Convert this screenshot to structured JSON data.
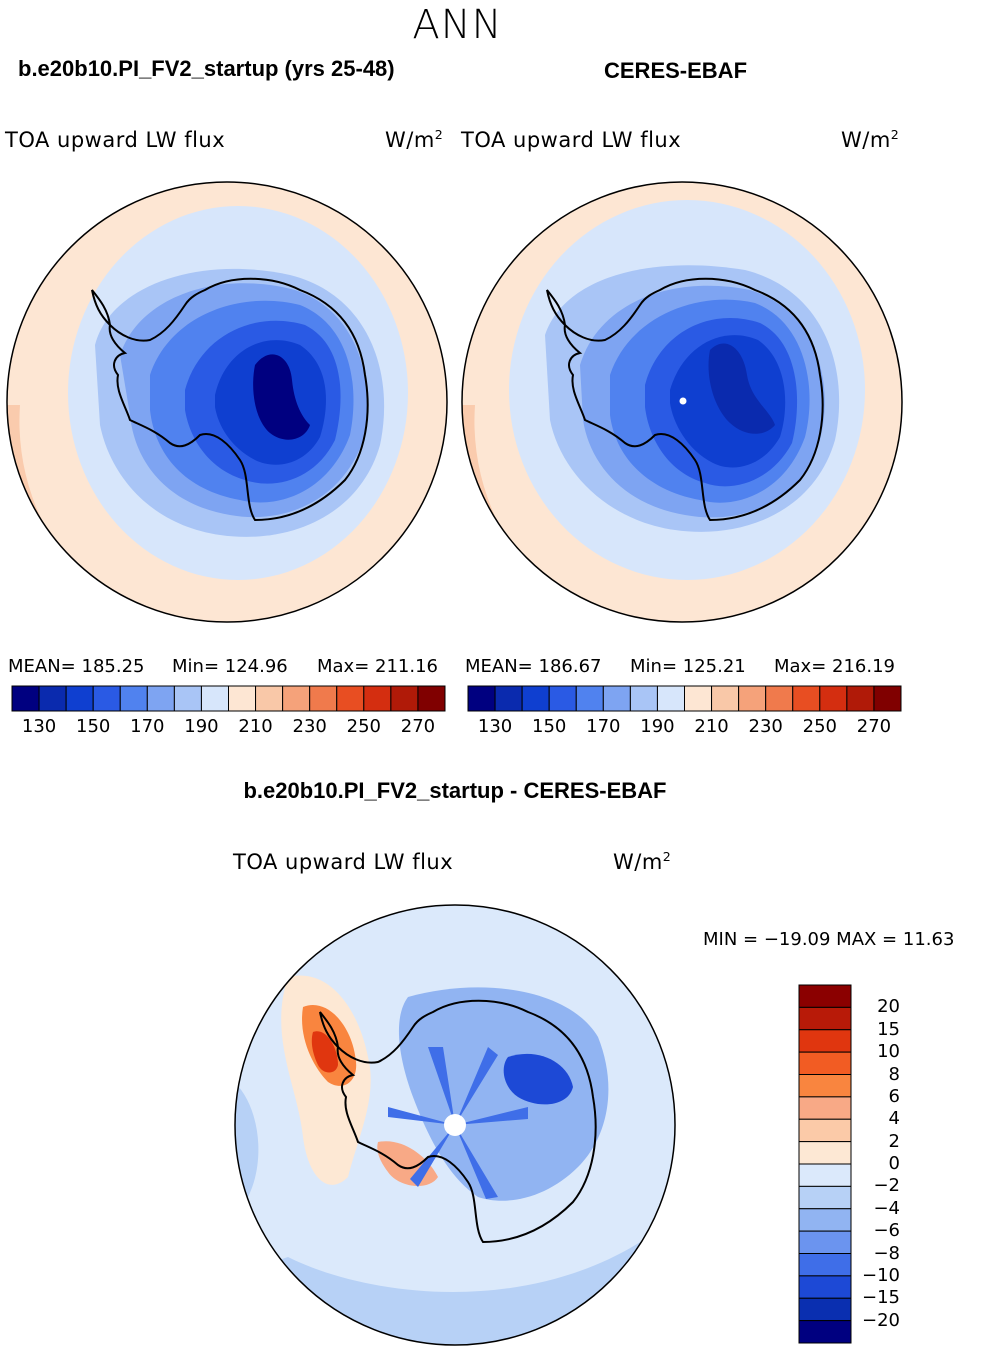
{
  "season": "ANN",
  "top_panels": [
    {
      "case_title": "b.e20b10.PI_FV2_startup (yrs 25-48)",
      "variable": "TOA upward LW flux",
      "units": "W/m",
      "units_sup": "2",
      "mean_label": "MEAN=  185.25",
      "min_label": "Min=  124.96",
      "max_label": "Max=  211.16"
    },
    {
      "case_title": "CERES-EBAF",
      "variable": "TOA upward LW flux",
      "units": "W/m",
      "units_sup": "2",
      "mean_label": "MEAN=  186.67",
      "min_label": "Min=  125.21",
      "max_label": "Max=  216.19"
    }
  ],
  "colorbar_abs": {
    "tick_labels": [
      "130",
      "150",
      "170",
      "190",
      "210",
      "230",
      "250",
      "270"
    ],
    "colors": [
      "#000080",
      "#0a2aae",
      "#0f3fd0",
      "#2a5ae4",
      "#5082ef",
      "#7ea4f2",
      "#a9c5f6",
      "#d7e6fb",
      "#fde6d3",
      "#f9c8a8",
      "#f5a27a",
      "#f07a4c",
      "#e84e22",
      "#d42e10",
      "#b01a08",
      "#800000"
    ]
  },
  "diff_panel": {
    "title": "b.e20b10.PI_FV2_startup - CERES-EBAF",
    "variable": "TOA upward LW flux",
    "units": "W/m",
    "units_sup": "2",
    "minmax_label": "MIN = −19.09 MAX =   11.63"
  },
  "colorbar_diff": {
    "tick_labels": [
      "20",
      "15",
      "10",
      "8",
      "6",
      "4",
      "2",
      "0",
      "−2",
      "−4",
      "−6",
      "−8",
      "−10",
      "−15",
      "−20"
    ],
    "colors": [
      "#8b0000",
      "#b81a08",
      "#e0360f",
      "#f25c23",
      "#f9853f",
      "#f8a986",
      "#fbcaa8",
      "#fde8d4",
      "#dbe9fb",
      "#b7d1f6",
      "#91b4f2",
      "#6b94ef",
      "#3f6ee8",
      "#1d49d6",
      "#0a2fb0",
      "#000080"
    ]
  },
  "colors": {
    "ocean_outer": "#fde6d3",
    "ocean_rim": "#f9c8a8",
    "ocean_mid": "#d7e6fb",
    "land_outline": "#000000",
    "diff_background": "#dbe9fb"
  }
}
